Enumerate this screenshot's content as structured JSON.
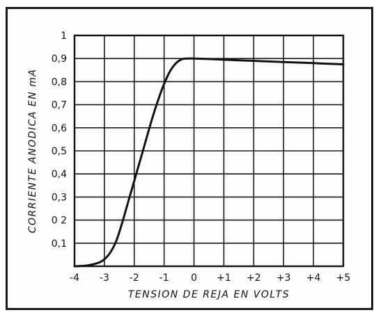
{
  "chart_data": {
    "type": "line",
    "title": "",
    "xlabel": "TENSION DE REJA EN VOLTS",
    "ylabel": "CORRIENTE ANODICA EN mA",
    "xlim": [
      -4,
      5
    ],
    "ylim": [
      0,
      1
    ],
    "x_ticks": [
      "-4",
      "-3",
      "-2",
      "-1",
      "0",
      "+1",
      "+2",
      "+3",
      "+4",
      "+5"
    ],
    "y_ticks": [
      "0,1",
      "0 2",
      "0,3",
      "0,4",
      "0,5",
      "0,6",
      "0,7",
      "0,8",
      "0,9",
      "1"
    ],
    "grid": true,
    "series": [
      {
        "x": [
          -4.0,
          -3.6,
          -3.2,
          -3.0,
          -2.8,
          -2.6,
          -2.4,
          -2.2,
          -2.0,
          -1.8,
          -1.6,
          -1.4,
          -1.2,
          -1.0,
          -0.8,
          -0.6,
          -0.4,
          -0.2,
          0.0,
          0.5,
          1.0,
          2.0,
          3.0,
          4.0,
          5.0
        ],
        "y": [
          0.0,
          0.003,
          0.015,
          0.03,
          0.06,
          0.11,
          0.19,
          0.28,
          0.37,
          0.46,
          0.55,
          0.64,
          0.72,
          0.79,
          0.845,
          0.88,
          0.897,
          0.9,
          0.9,
          0.898,
          0.895,
          0.89,
          0.885,
          0.88,
          0.875
        ]
      }
    ]
  }
}
